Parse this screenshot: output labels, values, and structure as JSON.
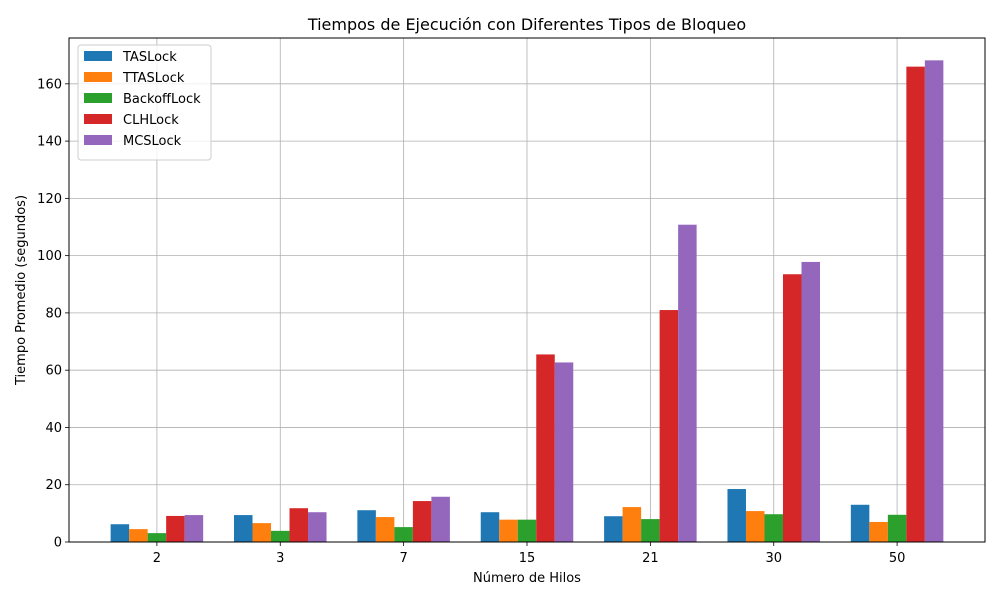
{
  "chart_data": {
    "type": "bar",
    "title": "Tiempos de Ejecución con Diferentes Tipos de Bloqueo",
    "xlabel": "Número de Hilos",
    "ylabel": "Tiempo Promedio (segundos)",
    "categories": [
      "2",
      "3",
      "7",
      "15",
      "21",
      "30",
      "50"
    ],
    "ylim": [
      0,
      176
    ],
    "yticks": [
      0,
      20,
      40,
      60,
      80,
      100,
      120,
      140,
      160
    ],
    "grid": true,
    "legend_position": "top-left",
    "series": [
      {
        "name": "TASLock",
        "color": "#1f77b4",
        "values": [
          6.2,
          9.4,
          11.1,
          10.4,
          9.0,
          18.5,
          13.0
        ]
      },
      {
        "name": "TTASLock",
        "color": "#ff7f0e",
        "values": [
          4.5,
          6.6,
          8.7,
          7.8,
          12.2,
          10.8,
          7.0
        ]
      },
      {
        "name": "BackoffLock",
        "color": "#2ca02c",
        "values": [
          3.1,
          3.9,
          5.2,
          7.8,
          8.0,
          9.7,
          9.5
        ]
      },
      {
        "name": "CLHLock",
        "color": "#d62728",
        "values": [
          9.1,
          11.8,
          14.3,
          65.5,
          81.0,
          93.5,
          166.0
        ]
      },
      {
        "name": "MCSLock",
        "color": "#9467bd",
        "values": [
          9.4,
          10.4,
          15.8,
          62.7,
          110.8,
          97.8,
          168.2
        ]
      }
    ]
  }
}
